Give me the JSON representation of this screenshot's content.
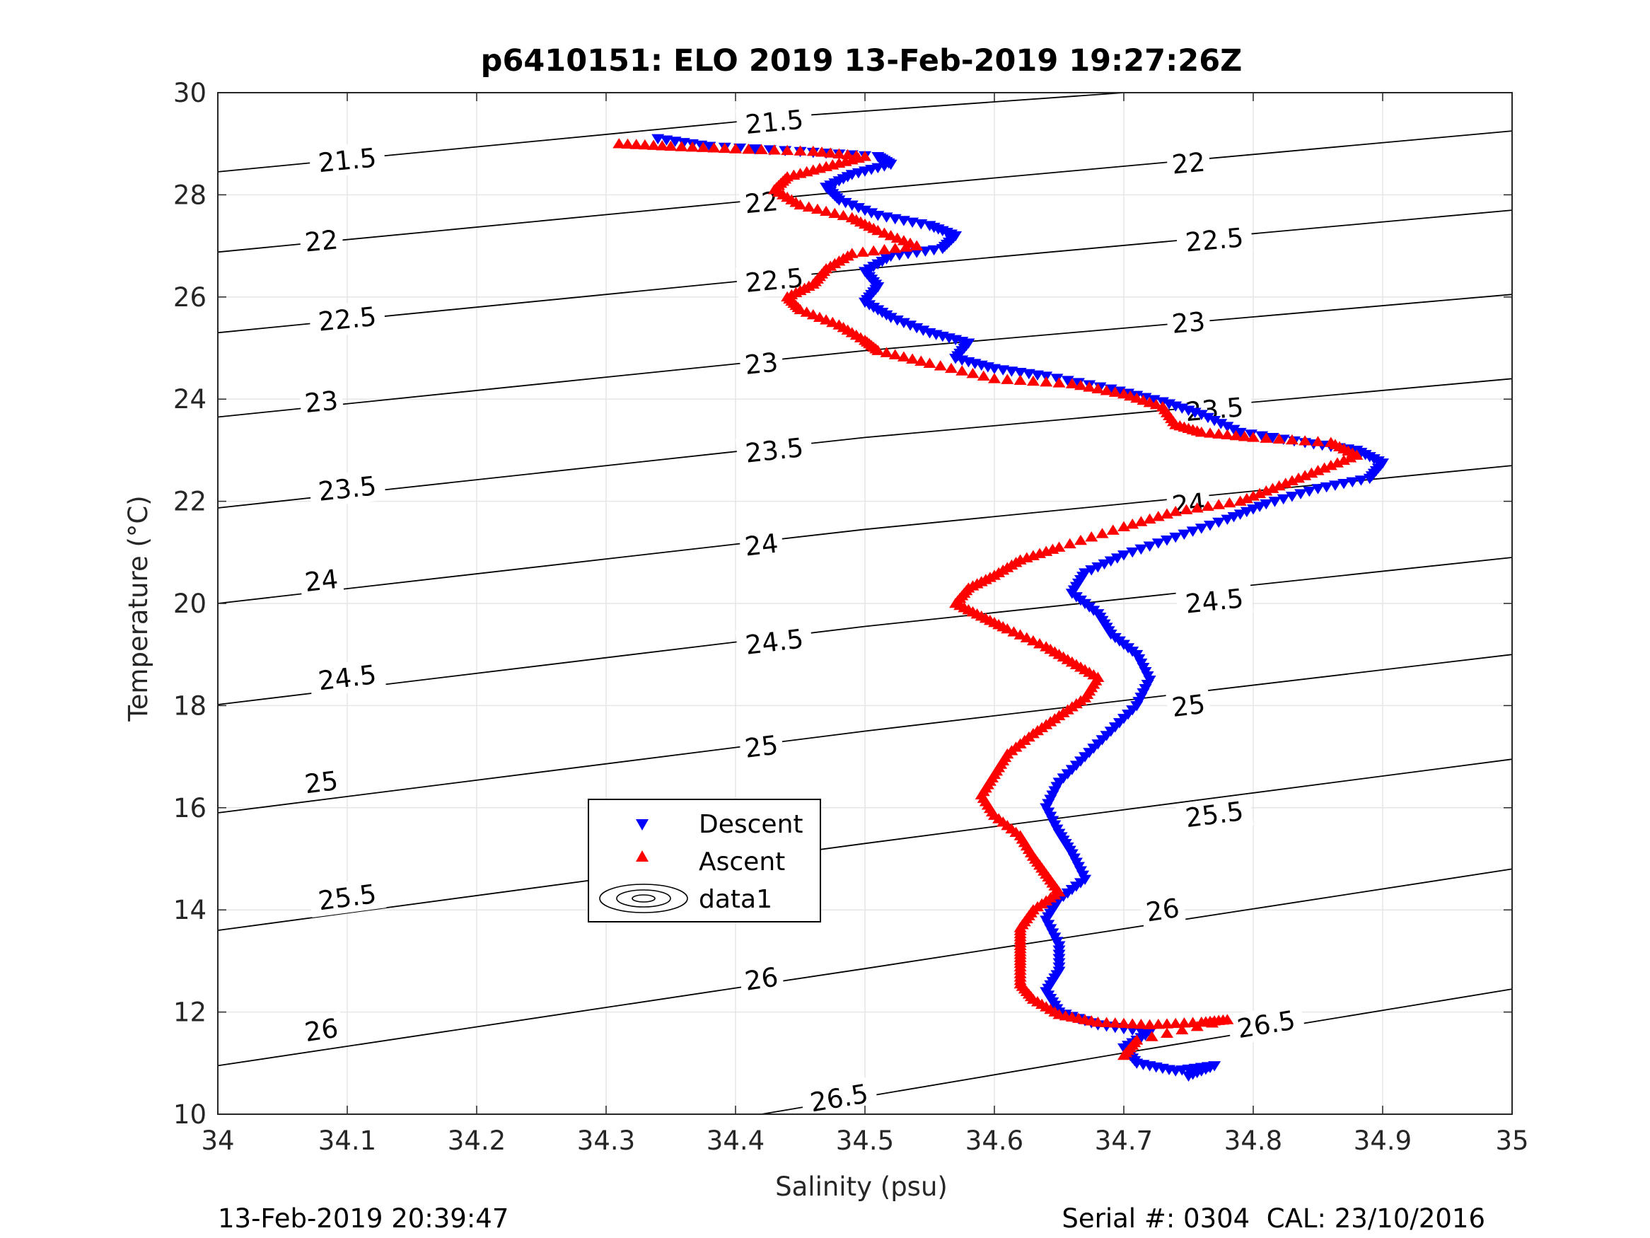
{
  "chart_data": {
    "type": "scatter",
    "title": "p6410151: ELO 2019 13-Feb-2019 19:27:26Z",
    "xlabel": "Salinity (psu)",
    "ylabel": "Temperature (°C)",
    "xlim": [
      34,
      35
    ],
    "ylim": [
      10,
      30
    ],
    "xticks": [
      "34",
      "34.1",
      "34.2",
      "34.3",
      "34.4",
      "34.5",
      "34.6",
      "34.7",
      "34.8",
      "34.9",
      "35"
    ],
    "yticks": [
      "10",
      "12",
      "14",
      "16",
      "18",
      "20",
      "22",
      "24",
      "26",
      "28",
      "30"
    ],
    "grid": true,
    "legend_position": "lower-left",
    "series": [
      {
        "name": "Descent",
        "marker": "triangle-down",
        "color": "#0000ff",
        "points": [
          [
            34.34,
            29.1
          ],
          [
            34.38,
            28.95
          ],
          [
            34.45,
            28.85
          ],
          [
            34.51,
            28.75
          ],
          [
            34.52,
            28.6
          ],
          [
            34.49,
            28.4
          ],
          [
            34.47,
            28.15
          ],
          [
            34.48,
            27.9
          ],
          [
            34.51,
            27.6
          ],
          [
            34.55,
            27.4
          ],
          [
            34.57,
            27.2
          ],
          [
            34.56,
            26.95
          ],
          [
            34.52,
            26.8
          ],
          [
            34.5,
            26.5
          ],
          [
            34.51,
            26.2
          ],
          [
            34.5,
            25.9
          ],
          [
            34.52,
            25.6
          ],
          [
            34.55,
            25.3
          ],
          [
            34.58,
            25.1
          ],
          [
            34.57,
            24.8
          ],
          [
            34.6,
            24.6
          ],
          [
            34.64,
            24.45
          ],
          [
            34.69,
            24.2
          ],
          [
            34.73,
            23.95
          ],
          [
            34.76,
            23.7
          ],
          [
            34.79,
            23.35
          ],
          [
            34.84,
            23.15
          ],
          [
            34.88,
            23.0
          ],
          [
            34.9,
            22.75
          ],
          [
            34.89,
            22.45
          ],
          [
            34.85,
            22.25
          ],
          [
            34.81,
            21.95
          ],
          [
            34.78,
            21.65
          ],
          [
            34.74,
            21.3
          ],
          [
            34.7,
            20.95
          ],
          [
            34.67,
            20.6
          ],
          [
            34.66,
            20.2
          ],
          [
            34.68,
            19.8
          ],
          [
            34.69,
            19.4
          ],
          [
            34.71,
            19.0
          ],
          [
            34.72,
            18.5
          ],
          [
            34.71,
            18.0
          ],
          [
            34.69,
            17.5
          ],
          [
            34.67,
            17.0
          ],
          [
            34.65,
            16.5
          ],
          [
            34.64,
            16.0
          ],
          [
            34.65,
            15.5
          ],
          [
            34.66,
            15.1
          ],
          [
            34.67,
            14.6
          ],
          [
            34.65,
            14.2
          ],
          [
            34.64,
            13.8
          ],
          [
            34.65,
            13.3
          ],
          [
            34.65,
            12.8
          ],
          [
            34.64,
            12.4
          ],
          [
            34.65,
            12.0
          ],
          [
            34.68,
            11.75
          ],
          [
            34.72,
            11.6
          ],
          [
            34.7,
            11.3
          ],
          [
            34.71,
            11.0
          ],
          [
            34.74,
            10.85
          ],
          [
            34.77,
            10.95
          ],
          [
            34.75,
            10.75
          ]
        ]
      },
      {
        "name": "Ascent",
        "marker": "triangle-up",
        "color": "#ff0000",
        "points": [
          [
            34.31,
            29.0
          ],
          [
            34.35,
            28.95
          ],
          [
            34.4,
            28.9
          ],
          [
            34.46,
            28.85
          ],
          [
            34.5,
            28.75
          ],
          [
            34.47,
            28.55
          ],
          [
            34.44,
            28.35
          ],
          [
            34.43,
            28.1
          ],
          [
            34.45,
            27.8
          ],
          [
            34.49,
            27.55
          ],
          [
            34.51,
            27.3
          ],
          [
            34.54,
            27.0
          ],
          [
            34.49,
            26.85
          ],
          [
            34.47,
            26.55
          ],
          [
            34.46,
            26.25
          ],
          [
            34.44,
            26.0
          ],
          [
            34.45,
            25.75
          ],
          [
            34.48,
            25.45
          ],
          [
            34.5,
            25.15
          ],
          [
            34.51,
            24.95
          ],
          [
            34.55,
            24.7
          ],
          [
            34.6,
            24.4
          ],
          [
            34.66,
            24.3
          ],
          [
            34.7,
            24.1
          ],
          [
            34.73,
            23.85
          ],
          [
            34.74,
            23.5
          ],
          [
            34.76,
            23.35
          ],
          [
            34.8,
            23.25
          ],
          [
            34.86,
            23.15
          ],
          [
            34.88,
            22.9
          ],
          [
            34.85,
            22.6
          ],
          [
            34.82,
            22.3
          ],
          [
            34.79,
            22.0
          ],
          [
            34.74,
            21.8
          ],
          [
            34.7,
            21.5
          ],
          [
            34.65,
            21.1
          ],
          [
            34.62,
            20.85
          ],
          [
            34.6,
            20.55
          ],
          [
            34.58,
            20.3
          ],
          [
            34.57,
            20.0
          ],
          [
            34.59,
            19.75
          ],
          [
            34.61,
            19.5
          ],
          [
            34.64,
            19.15
          ],
          [
            34.66,
            18.85
          ],
          [
            34.68,
            18.55
          ],
          [
            34.67,
            18.15
          ],
          [
            34.65,
            17.8
          ],
          [
            34.63,
            17.45
          ],
          [
            34.61,
            17.05
          ],
          [
            34.6,
            16.65
          ],
          [
            34.59,
            16.25
          ],
          [
            34.6,
            15.85
          ],
          [
            34.62,
            15.45
          ],
          [
            34.63,
            15.05
          ],
          [
            34.64,
            14.7
          ],
          [
            34.65,
            14.35
          ],
          [
            34.63,
            14.0
          ],
          [
            34.62,
            13.65
          ],
          [
            34.62,
            13.3
          ],
          [
            34.62,
            12.95
          ],
          [
            34.62,
            12.55
          ],
          [
            34.63,
            12.25
          ],
          [
            34.65,
            11.95
          ],
          [
            34.68,
            11.8
          ],
          [
            34.72,
            11.75
          ],
          [
            34.76,
            11.8
          ],
          [
            34.78,
            11.85
          ],
          [
            34.71,
            11.45
          ],
          [
            34.7,
            11.15
          ]
        ]
      }
    ],
    "contours": {
      "name": "data1",
      "lines": [
        {
          "label": "21.5",
          "points": [
            [
              34.0,
              28.45
            ],
            [
              34.45,
              29.55
            ],
            [
              34.7,
              30.0
            ]
          ]
        },
        {
          "label": "22",
          "points": [
            [
              34.0,
              26.88
            ],
            [
              34.5,
              28.1
            ],
            [
              35.0,
              29.25
            ]
          ]
        },
        {
          "label": "22.5",
          "points": [
            [
              34.0,
              25.3
            ],
            [
              34.5,
              26.55
            ],
            [
              35.0,
              27.7
            ]
          ]
        },
        {
          "label": "23",
          "points": [
            [
              34.0,
              23.65
            ],
            [
              34.5,
              24.95
            ],
            [
              35.0,
              26.05
            ]
          ]
        },
        {
          "label": "23.5",
          "points": [
            [
              34.0,
              21.87
            ],
            [
              34.5,
              23.25
            ],
            [
              35.0,
              24.4
            ]
          ]
        },
        {
          "label": "24",
          "points": [
            [
              34.0,
              20.0
            ],
            [
              34.5,
              21.45
            ],
            [
              35.0,
              22.7
            ]
          ]
        },
        {
          "label": "24.5",
          "points": [
            [
              34.0,
              18.02
            ],
            [
              34.5,
              19.55
            ],
            [
              35.0,
              20.9
            ]
          ]
        },
        {
          "label": "25",
          "points": [
            [
              34.0,
              15.9
            ],
            [
              34.5,
              17.5
            ],
            [
              35.0,
              19.0
            ]
          ]
        },
        {
          "label": "25.5",
          "points": [
            [
              34.0,
              13.6
            ],
            [
              34.5,
              15.3
            ],
            [
              35.0,
              16.95
            ]
          ]
        },
        {
          "label": "26",
          "points": [
            [
              34.0,
              10.95
            ],
            [
              34.5,
              12.85
            ],
            [
              35.0,
              14.8
            ]
          ]
        },
        {
          "label": "26.5",
          "points": [
            [
              34.42,
              10.0
            ],
            [
              34.7,
              11.2
            ],
            [
              35.0,
              12.45
            ]
          ]
        }
      ],
      "label_positions": [
        [
          "21.5",
          34.1,
          28.68
        ],
        [
          "21.5",
          34.43,
          29.43
        ],
        [
          "22",
          34.08,
          27.1
        ],
        [
          "22",
          34.42,
          27.85
        ],
        [
          "22",
          34.75,
          28.62
        ],
        [
          "22.5",
          34.1,
          25.57
        ],
        [
          "22.5",
          34.43,
          26.33
        ],
        [
          "22.5",
          34.77,
          27.12
        ],
        [
          "23",
          34.08,
          23.95
        ],
        [
          "23",
          34.42,
          24.7
        ],
        [
          "23",
          34.75,
          25.5
        ],
        [
          "23.5",
          34.1,
          22.25
        ],
        [
          "23.5",
          34.43,
          23.0
        ],
        [
          "23.5",
          34.77,
          23.8
        ],
        [
          "24",
          34.08,
          20.45
        ],
        [
          "24",
          34.42,
          21.15
        ],
        [
          "24",
          34.75,
          21.95
        ],
        [
          "24.5",
          34.1,
          18.55
        ],
        [
          "24.5",
          34.43,
          19.25
        ],
        [
          "24.5",
          34.77,
          20.05
        ],
        [
          "25",
          34.08,
          16.5
        ],
        [
          "25",
          34.42,
          17.2
        ],
        [
          "25",
          34.75,
          18.0
        ],
        [
          "25.5",
          34.1,
          14.25
        ],
        [
          "25.5",
          34.42,
          15.05
        ],
        [
          "25.5",
          34.77,
          15.87
        ],
        [
          "26",
          34.08,
          11.65
        ],
        [
          "26",
          34.42,
          12.65
        ],
        [
          "26",
          34.73,
          14.0
        ],
        [
          "26.5",
          34.48,
          10.32
        ],
        [
          "26.5",
          34.81,
          11.76
        ]
      ]
    },
    "footer": {
      "left": "13-Feb-2019 20:39:47",
      "right": "Serial #: 0304  CAL: 23/10/2016"
    }
  }
}
